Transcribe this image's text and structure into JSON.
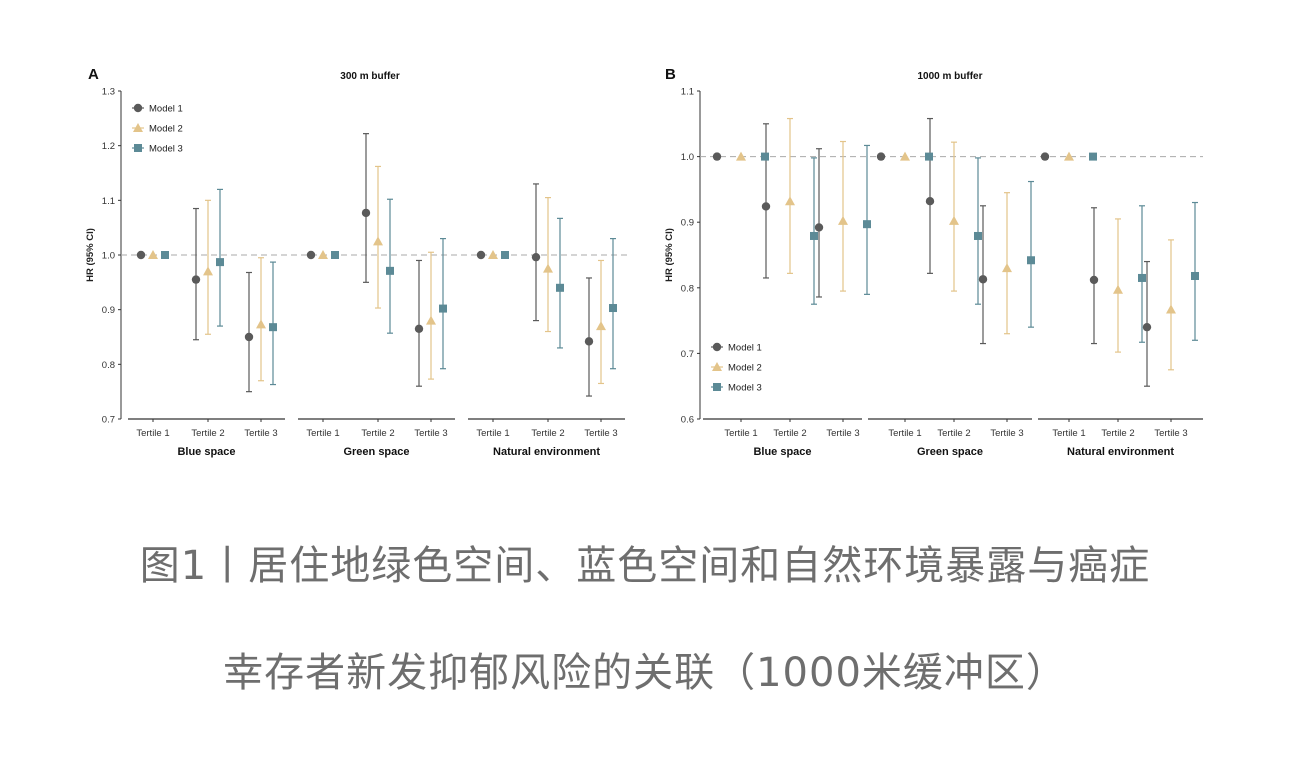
{
  "caption": {
    "line1": "图1丨居住地绿色空间、蓝色空间和自然环境暴露与癌症",
    "line2": "幸存者新发抑郁风险的关联（1000米缓冲区）"
  },
  "colors": {
    "model1": "#5a5a5a",
    "model2": "#e3c48a",
    "model3": "#5c8a96",
    "reference_line": "#aaaaaa"
  },
  "chart_data": [
    {
      "panel": "A",
      "type": "forest",
      "title": "300 m buffer",
      "ylabel": "HR (95% CI)",
      "ylim": [
        0.7,
        1.3
      ],
      "yticks": [
        "0.7",
        "0.8",
        "0.9",
        "1.0",
        "1.1",
        "1.2",
        "1.3"
      ],
      "reference": 1.0,
      "legend_position": "top-left",
      "groups": [
        "Blue space",
        "Green space",
        "Natural environment"
      ],
      "categories": [
        "Tertile 1",
        "Tertile 2",
        "Tertile 3"
      ],
      "series": [
        {
          "name": "Model 1",
          "marker": "circle",
          "values": [
            [
              [
                1.0,
                1.0,
                1.0
              ],
              [
                0.955,
                0.845,
                1.085
              ],
              [
                0.85,
                0.75,
                0.968
              ]
            ],
            [
              [
                1.0,
                1.0,
                1.0
              ],
              [
                1.077,
                0.95,
                1.222
              ],
              [
                0.865,
                0.76,
                0.99
              ]
            ],
            [
              [
                1.0,
                1.0,
                1.0
              ],
              [
                0.996,
                0.88,
                1.13
              ],
              [
                0.842,
                0.742,
                0.958
              ]
            ]
          ]
        },
        {
          "name": "Model 2",
          "marker": "triangle",
          "values": [
            [
              [
                1.0,
                1.0,
                1.0
              ],
              [
                0.97,
                0.855,
                1.1
              ],
              [
                0.873,
                0.77,
                0.995
              ]
            ],
            [
              [
                1.0,
                1.0,
                1.0
              ],
              [
                1.025,
                0.903,
                1.162
              ],
              [
                0.88,
                0.773,
                1.005
              ]
            ],
            [
              [
                1.0,
                1.0,
                1.0
              ],
              [
                0.975,
                0.86,
                1.105
              ],
              [
                0.87,
                0.765,
                0.99
              ]
            ]
          ]
        },
        {
          "name": "Model 3",
          "marker": "square",
          "values": [
            [
              [
                1.0,
                1.0,
                1.0
              ],
              [
                0.987,
                0.87,
                1.12
              ],
              [
                0.868,
                0.763,
                0.987
              ]
            ],
            [
              [
                1.0,
                1.0,
                1.0
              ],
              [
                0.971,
                0.857,
                1.102
              ],
              [
                0.902,
                0.792,
                1.03
              ]
            ],
            [
              [
                1.0,
                1.0,
                1.0
              ],
              [
                0.94,
                0.83,
                1.067
              ],
              [
                0.903,
                0.792,
                1.03
              ]
            ]
          ]
        }
      ]
    },
    {
      "panel": "B",
      "type": "forest",
      "title": "1000 m buffer",
      "ylabel": "HR (95% CI)",
      "ylim": [
        0.6,
        1.1
      ],
      "yticks": [
        "0.6",
        "0.7",
        "0.8",
        "0.9",
        "1.0",
        "1.1"
      ],
      "reference": 1.0,
      "legend_position": "bottom-left",
      "groups": [
        "Blue space",
        "Green space",
        "Natural environment"
      ],
      "categories": [
        "Tertile 1",
        "Tertile 2",
        "Tertile 3"
      ],
      "series": [
        {
          "name": "Model 1",
          "marker": "circle",
          "values": [
            [
              [
                1.0,
                1.0,
                1.0
              ],
              [
                0.924,
                0.815,
                1.05
              ],
              [
                0.892,
                0.786,
                1.012
              ]
            ],
            [
              [
                1.0,
                1.0,
                1.0
              ],
              [
                0.932,
                0.822,
                1.058
              ],
              [
                0.813,
                0.715,
                0.925
              ]
            ],
            [
              [
                1.0,
                1.0,
                1.0
              ],
              [
                0.812,
                0.715,
                0.922
              ],
              [
                0.74,
                0.65,
                0.84
              ]
            ]
          ]
        },
        {
          "name": "Model 2",
          "marker": "triangle",
          "values": [
            [
              [
                1.0,
                1.0,
                1.0
              ],
              [
                0.932,
                0.822,
                1.058
              ],
              [
                0.902,
                0.795,
                1.023
              ]
            ],
            [
              [
                1.0,
                1.0,
                1.0
              ],
              [
                0.902,
                0.795,
                1.022
              ],
              [
                0.83,
                0.73,
                0.945
              ]
            ],
            [
              [
                1.0,
                1.0,
                1.0
              ],
              [
                0.797,
                0.702,
                0.905
              ],
              [
                0.767,
                0.675,
                0.873
              ]
            ]
          ]
        },
        {
          "name": "Model 3",
          "marker": "square",
          "values": [
            [
              [
                1.0,
                1.0,
                1.0
              ],
              [
                0.879,
                0.775,
                0.998
              ],
              [
                0.897,
                0.79,
                1.017
              ]
            ],
            [
              [
                1.0,
                1.0,
                1.0
              ],
              [
                0.879,
                0.775,
                0.998
              ],
              [
                0.842,
                0.74,
                0.962
              ]
            ],
            [
              [
                1.0,
                1.0,
                1.0
              ],
              [
                0.815,
                0.717,
                0.925
              ],
              [
                0.818,
                0.72,
                0.93
              ]
            ]
          ]
        }
      ]
    }
  ]
}
